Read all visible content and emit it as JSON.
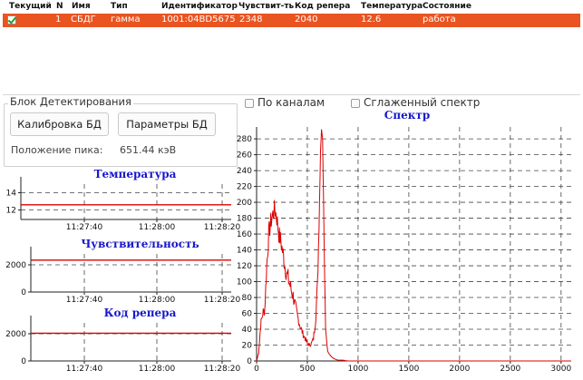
{
  "table": {
    "columns": [
      "Текущий",
      "N",
      "Имя",
      "Тип",
      "Идентификатор",
      "Чувствит-ть",
      "Код репера",
      "Температура",
      "Состояние"
    ],
    "rows": [
      {
        "current": true,
        "n": "1",
        "name": "СБДГ",
        "type": "гамма",
        "id": "1001:04BD5675",
        "sens": "2348",
        "ref": "2040",
        "temp": "12.6",
        "state": "работа"
      }
    ]
  },
  "detect": {
    "title": "Блок Детектирования",
    "calib_btn": "Калибровка БД",
    "params_btn": "Параметры БД",
    "peak_label": "Положение пика:",
    "peak_value": "651.44 кэВ"
  },
  "options": {
    "by_channels": "По каналам",
    "smoothed": "Сглаженный спектр"
  },
  "colors": {
    "accent": "#e95420",
    "plot_line": "#dd0000",
    "plot_title": "#1818cc"
  },
  "chart_data": [
    {
      "type": "line",
      "title": "Температура",
      "x_ticks": [
        "11:27:40",
        "11:28:00",
        "11:28:20"
      ],
      "y_ticks": [
        "12",
        "14"
      ],
      "ylim": [
        10.9,
        15.0
      ],
      "series": [
        {
          "values": [
            12.6,
            12.6
          ]
        }
      ]
    },
    {
      "type": "line",
      "title": "Чувствительность",
      "x_ticks": [
        "11:27:40",
        "11:28:00",
        "11:28:20"
      ],
      "y_ticks": [
        "0",
        "2000"
      ],
      "ylim": [
        0,
        2800
      ],
      "series": [
        {
          "values": [
            2348,
            2348
          ]
        }
      ]
    },
    {
      "type": "line",
      "title": "Код репера",
      "x_ticks": [
        "11:27:40",
        "11:28:00",
        "11:28:20"
      ],
      "y_ticks": [
        "0",
        "2000"
      ],
      "ylim": [
        0,
        2800
      ],
      "series": [
        {
          "values": [
            2040,
            2040
          ]
        }
      ]
    },
    {
      "type": "line",
      "title": "Спектр",
      "x_ticks": [
        "0",
        "500",
        "1000",
        "1500",
        "2000",
        "2500",
        "3000"
      ],
      "y_ticks": [
        "0",
        "20",
        "40",
        "60",
        "80",
        "100",
        "120",
        "140",
        "160",
        "180",
        "200",
        "220",
        "240",
        "260",
        "280"
      ],
      "xlim": [
        0,
        3100
      ],
      "ylim": [
        0,
        295
      ],
      "series": [
        {
          "x": [
            0,
            20,
            40,
            60,
            80,
            100,
            120,
            140,
            160,
            180,
            200,
            220,
            240,
            260,
            280,
            300,
            320,
            340,
            360,
            380,
            400,
            420,
            440,
            460,
            480,
            500,
            520,
            540,
            560,
            580,
            600,
            620,
            630,
            640,
            650,
            660,
            670,
            680,
            700,
            720,
            740,
            760,
            780,
            800,
            850,
            900,
            1000,
            1200,
            1500,
            2000,
            2500,
            3000,
            3100
          ],
          "y": [
            0,
            10,
            45,
            60,
            65,
            120,
            160,
            175,
            185,
            192,
            180,
            160,
            150,
            135,
            120,
            108,
            100,
            90,
            82,
            70,
            58,
            48,
            40,
            33,
            28,
            22,
            20,
            22,
            28,
            50,
            95,
            200,
            265,
            292,
            280,
            200,
            110,
            40,
            12,
            8,
            5,
            3,
            2,
            1,
            1,
            0,
            0,
            0,
            0,
            0,
            0,
            0,
            0
          ]
        }
      ]
    }
  ]
}
